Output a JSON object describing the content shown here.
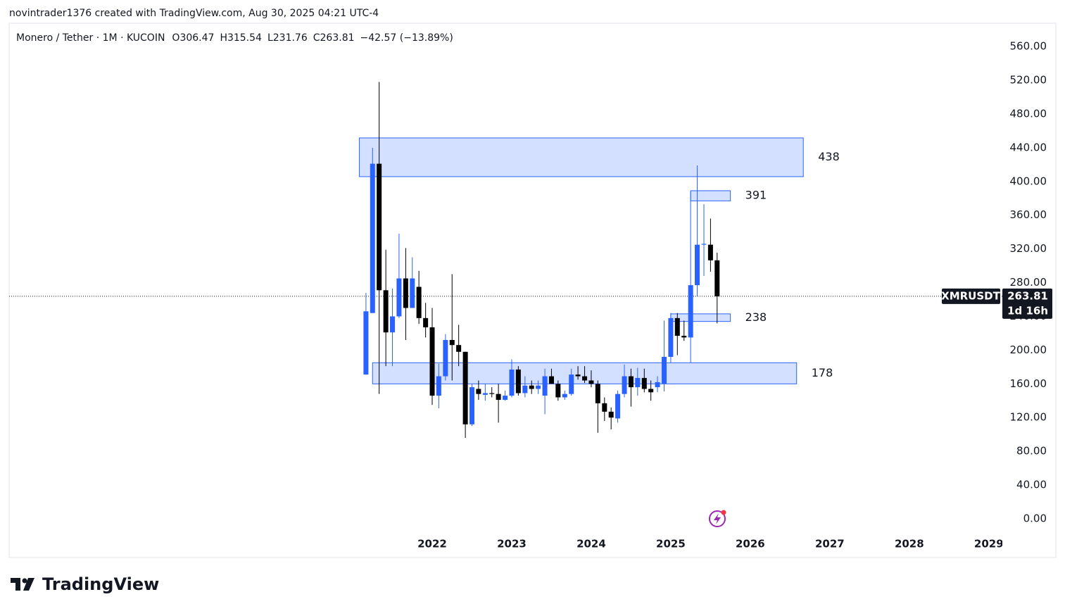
{
  "header": "novintrader1376 created with TradingView.com, Aug 30, 2025 04:21 UTC-4",
  "brand": "TradingView",
  "chart_data": {
    "type": "candlestick",
    "legend": "Monero / Tether · 1M · KUCOIN",
    "ohlc_labels": [
      "O306.47",
      "H315.54",
      "L231.76",
      "C263.81",
      "−42.57 (−13.89%)"
    ],
    "symbol": "XMRUSDT",
    "last_price": 263.81,
    "countdown": "1d 16h",
    "up_color": "#2962ff",
    "down_color": "#000000",
    "zone_color": "#2962ff",
    "x": [
      2021.167,
      2021.25,
      2021.333,
      2021.417,
      2021.5,
      2021.583,
      2021.667,
      2021.75,
      2021.833,
      2021.917,
      2022.0,
      2022.083,
      2022.167,
      2022.25,
      2022.333,
      2022.417,
      2022.5,
      2022.583,
      2022.667,
      2022.75,
      2022.833,
      2022.917,
      2023.0,
      2023.083,
      2023.167,
      2023.25,
      2023.333,
      2023.417,
      2023.5,
      2023.583,
      2023.667,
      2023.75,
      2023.833,
      2023.917,
      2024.0,
      2024.083,
      2024.167,
      2024.25,
      2024.333,
      2024.417,
      2024.5,
      2024.583,
      2024.667,
      2024.75,
      2024.833,
      2024.917,
      2025.0,
      2025.083,
      2025.167,
      2025.25,
      2025.333,
      2025.417,
      2025.5,
      2025.583
    ],
    "open": [
      171,
      244,
      421,
      271,
      221,
      240,
      285,
      250,
      275,
      238,
      227,
      146,
      169,
      212,
      206,
      198,
      112,
      154,
      147,
      149,
      148,
      141,
      146,
      177,
      149,
      158,
      154,
      146,
      169,
      160,
      144,
      148,
      171,
      169,
      164,
      160,
      137,
      127,
      119,
      148,
      169,
      156,
      167,
      154,
      156,
      160,
      192,
      238,
      217,
      215,
      277,
      325,
      325,
      306.47
    ],
    "high": [
      268,
      440,
      518,
      319,
      273,
      338,
      321,
      310,
      294,
      256,
      250,
      184,
      219,
      290,
      230,
      198,
      160,
      164,
      160,
      156,
      160,
      152,
      189,
      181,
      169,
      164,
      164,
      178,
      178,
      164,
      152,
      178,
      181,
      181,
      176,
      164,
      144,
      132,
      152,
      183,
      178,
      179,
      178,
      164,
      169,
      235,
      244,
      244,
      235,
      388,
      419,
      373,
      356,
      315.54
    ],
    "low": [
      171,
      244,
      148,
      181,
      181,
      238,
      212,
      250,
      231,
      215,
      135,
      131,
      164,
      164,
      181,
      96,
      110,
      141,
      140,
      144,
      114,
      140,
      144,
      146,
      144,
      148,
      148,
      124,
      160,
      140,
      141,
      146,
      165,
      161,
      156,
      102,
      116,
      106,
      114,
      144,
      133,
      146,
      150,
      140,
      150,
      151,
      185,
      194,
      211,
      185,
      264,
      288,
      293,
      231.76
    ],
    "close": [
      246,
      421,
      271,
      221,
      240,
      285,
      250,
      285,
      238,
      227,
      146,
      169,
      212,
      206,
      198,
      112,
      156,
      148,
      149,
      148,
      141,
      146,
      177,
      149,
      158,
      154,
      158,
      169,
      160,
      144,
      148,
      171,
      169,
      164,
      160,
      137,
      127,
      120,
      148,
      169,
      156,
      167,
      154,
      150,
      162,
      192,
      238,
      217,
      215,
      277,
      325,
      326,
      306.47,
      263.81
    ],
    "zones": [
      {
        "label": "438",
        "top": 451.6,
        "bottom": 405.7,
        "start": 2021.083,
        "end": 2026.667
      },
      {
        "label": "391",
        "top": 389,
        "bottom": 377,
        "start": 2025.25,
        "end": 2025.75
      },
      {
        "label": "238",
        "top": 243,
        "bottom": 234,
        "start": 2025.0,
        "end": 2025.75
      },
      {
        "label": "178",
        "top": 185,
        "bottom": 160,
        "start": 2021.25,
        "end": 2026.583
      }
    ],
    "xlim": [
      2016.68,
      2029.17
    ],
    "xticks": [
      2022,
      2023,
      2024,
      2025,
      2026,
      2027,
      2028,
      2029
    ],
    "ylim": [
      -45.9,
      587.6
    ],
    "yticks": [
      {
        "value": 0,
        "label": "0.00"
      },
      {
        "value": 40,
        "label": "40.00"
      },
      {
        "value": 80,
        "label": "80.00"
      },
      {
        "value": 120,
        "label": "120.00"
      },
      {
        "value": 160,
        "label": "160.00"
      },
      {
        "value": 200,
        "label": "200.00"
      },
      {
        "value": 240,
        "label": "240.00"
      },
      {
        "value": 280,
        "label": "280.00"
      },
      {
        "value": 320,
        "label": "320.00"
      },
      {
        "value": 360,
        "label": "360.00"
      },
      {
        "value": 400,
        "label": "400.00"
      },
      {
        "value": 440,
        "label": "440.00"
      },
      {
        "value": 480,
        "label": "480.00"
      },
      {
        "value": 520,
        "label": "520.00"
      },
      {
        "value": 560,
        "label": "560.00"
      }
    ],
    "grid": false
  }
}
